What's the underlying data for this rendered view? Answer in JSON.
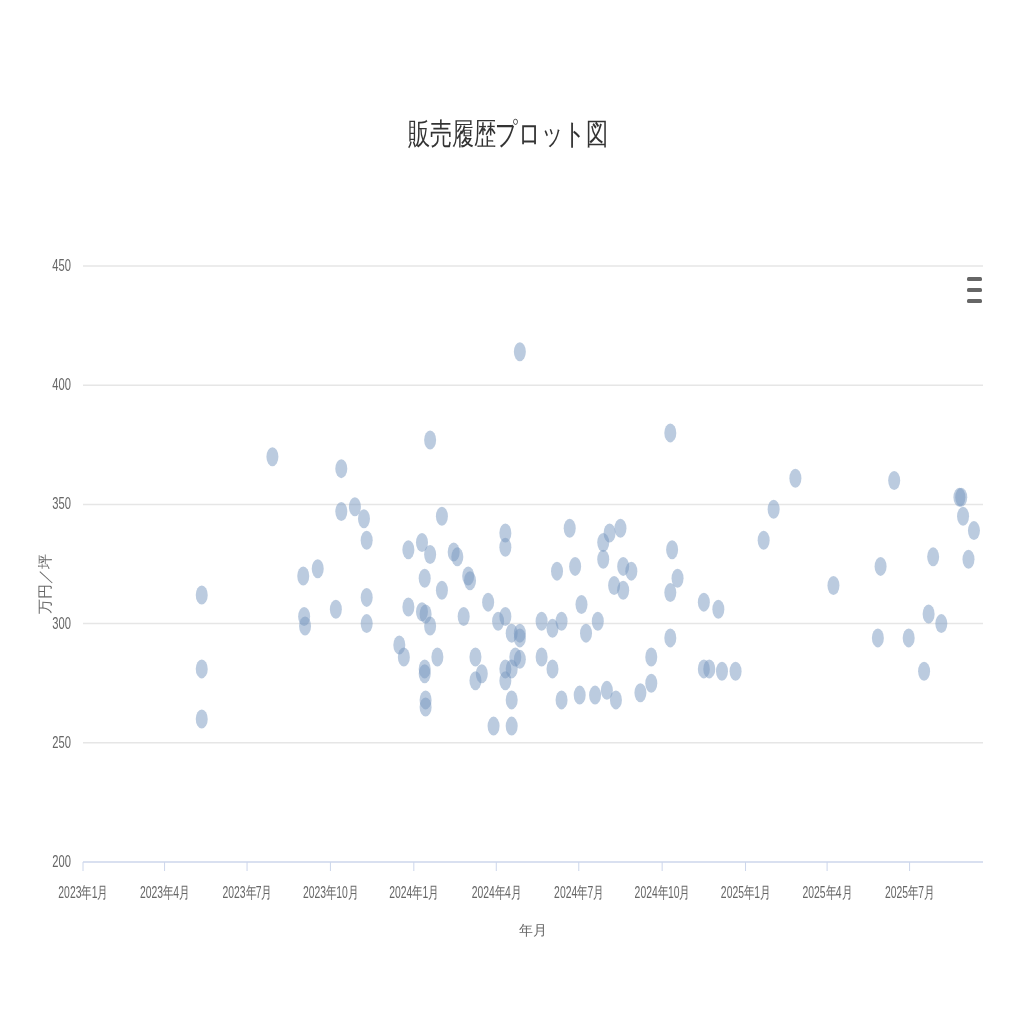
{
  "chart_data": {
    "type": "scatter",
    "title": "販売履歴プロット図",
    "xlabel": "年月",
    "ylabel": "万円／坪",
    "xlim": [
      "2023-01-01",
      "2025-09-20"
    ],
    "xticks": [
      {
        "value": "2023-01-01",
        "label": "2023年1月"
      },
      {
        "value": "2023-04-01",
        "label": "2023年4月"
      },
      {
        "value": "2023-07-01",
        "label": "2023年7月"
      },
      {
        "value": "2023-10-01",
        "label": "2023年10月"
      },
      {
        "value": "2024-01-01",
        "label": "2024年1月"
      },
      {
        "value": "2024-04-01",
        "label": "2024年4月"
      },
      {
        "value": "2024-07-01",
        "label": "2024年7月"
      },
      {
        "value": "2024-10-01",
        "label": "2024年10月"
      },
      {
        "value": "2025-01-01",
        "label": "2025年1月"
      },
      {
        "value": "2025-04-01",
        "label": "2025年4月"
      },
      {
        "value": "2025-07-01",
        "label": "2025年7月"
      }
    ],
    "ylim": [
      200,
      450
    ],
    "yticks": [
      200,
      250,
      300,
      350,
      400,
      450
    ],
    "grid": "y",
    "marker": "circle",
    "series": [
      {
        "color": "#7798bf",
        "x": [
          "2023-05-12",
          "2023-05-12",
          "2023-05-12",
          "2023-07-29",
          "2023-09-01",
          "2023-09-02",
          "2023-09-03",
          "2023-09-17",
          "2023-10-07",
          "2023-10-13",
          "2023-10-13",
          "2023-10-28",
          "2023-11-07",
          "2023-11-10",
          "2023-11-10",
          "2023-11-10",
          "2023-12-16",
          "2023-12-21",
          "2023-12-26",
          "2023-12-26",
          "2024-01-10",
          "2024-01-10",
          "2024-01-13",
          "2024-01-13",
          "2024-01-13",
          "2024-01-14",
          "2024-01-14",
          "2024-01-14",
          "2024-01-19",
          "2024-01-19",
          "2024-01-19",
          "2024-01-27",
          "2024-02-01",
          "2024-02-01",
          "2024-02-14",
          "2024-02-18",
          "2024-02-25",
          "2024-03-01",
          "2024-03-03",
          "2024-03-09",
          "2024-03-09",
          "2024-03-16",
          "2024-03-23",
          "2024-03-29",
          "2024-04-03",
          "2024-04-11",
          "2024-04-11",
          "2024-04-11",
          "2024-04-11",
          "2024-04-11",
          "2024-04-18",
          "2024-04-18",
          "2024-04-18",
          "2024-04-18",
          "2024-04-22",
          "2024-04-27",
          "2024-04-27",
          "2024-04-27",
          "2024-04-27",
          "2024-05-21",
          "2024-05-21",
          "2024-06-02",
          "2024-06-02",
          "2024-06-07",
          "2024-06-12",
          "2024-06-12",
          "2024-06-21",
          "2024-06-27",
          "2024-07-02",
          "2024-07-04",
          "2024-07-09",
          "2024-07-19",
          "2024-07-22",
          "2024-07-28",
          "2024-07-28",
          "2024-08-01",
          "2024-08-04",
          "2024-08-09",
          "2024-08-11",
          "2024-08-16",
          "2024-08-19",
          "2024-08-19",
          "2024-08-28",
          "2024-09-07",
          "2024-09-19",
          "2024-09-19",
          "2024-10-10",
          "2024-10-10",
          "2024-10-10",
          "2024-10-12",
          "2024-10-18",
          "2024-11-16",
          "2024-11-16",
          "2024-11-22",
          "2024-12-02",
          "2024-12-06",
          "2024-12-21",
          "2025-01-21",
          "2025-02-01",
          "2025-02-25",
          "2025-04-08",
          "2025-05-27",
          "2025-05-30",
          "2025-06-14",
          "2025-06-30",
          "2025-07-17",
          "2025-07-22",
          "2025-07-27",
          "2025-08-05",
          "2025-08-25",
          "2025-08-27",
          "2025-08-29",
          "2025-09-04",
          "2025-09-10"
        ],
        "values": [
          312,
          281,
          260,
          370,
          320,
          303,
          299,
          323,
          306,
          365,
          347,
          349,
          344,
          335,
          311,
          300,
          291,
          286,
          331,
          307,
          334,
          305,
          279,
          319,
          281,
          304,
          268,
          265,
          299,
          377,
          329,
          286,
          345,
          314,
          330,
          328,
          303,
          320,
          318,
          286,
          276,
          279,
          309,
          257,
          301,
          303,
          332,
          338,
          281,
          276,
          296,
          268,
          257,
          281,
          286,
          414,
          296,
          294,
          285,
          301,
          286,
          298,
          281,
          322,
          301,
          268,
          340,
          324,
          270,
          308,
          296,
          270,
          301,
          327,
          334,
          272,
          338,
          316,
          268,
          340,
          324,
          314,
          322,
          271,
          286,
          275,
          380,
          313,
          294,
          331,
          319,
          309,
          281,
          281,
          306,
          280,
          280,
          335,
          348,
          361,
          316,
          294,
          324,
          360,
          294,
          280,
          304,
          328,
          300,
          353,
          353,
          345,
          327,
          339
        ]
      }
    ]
  }
}
